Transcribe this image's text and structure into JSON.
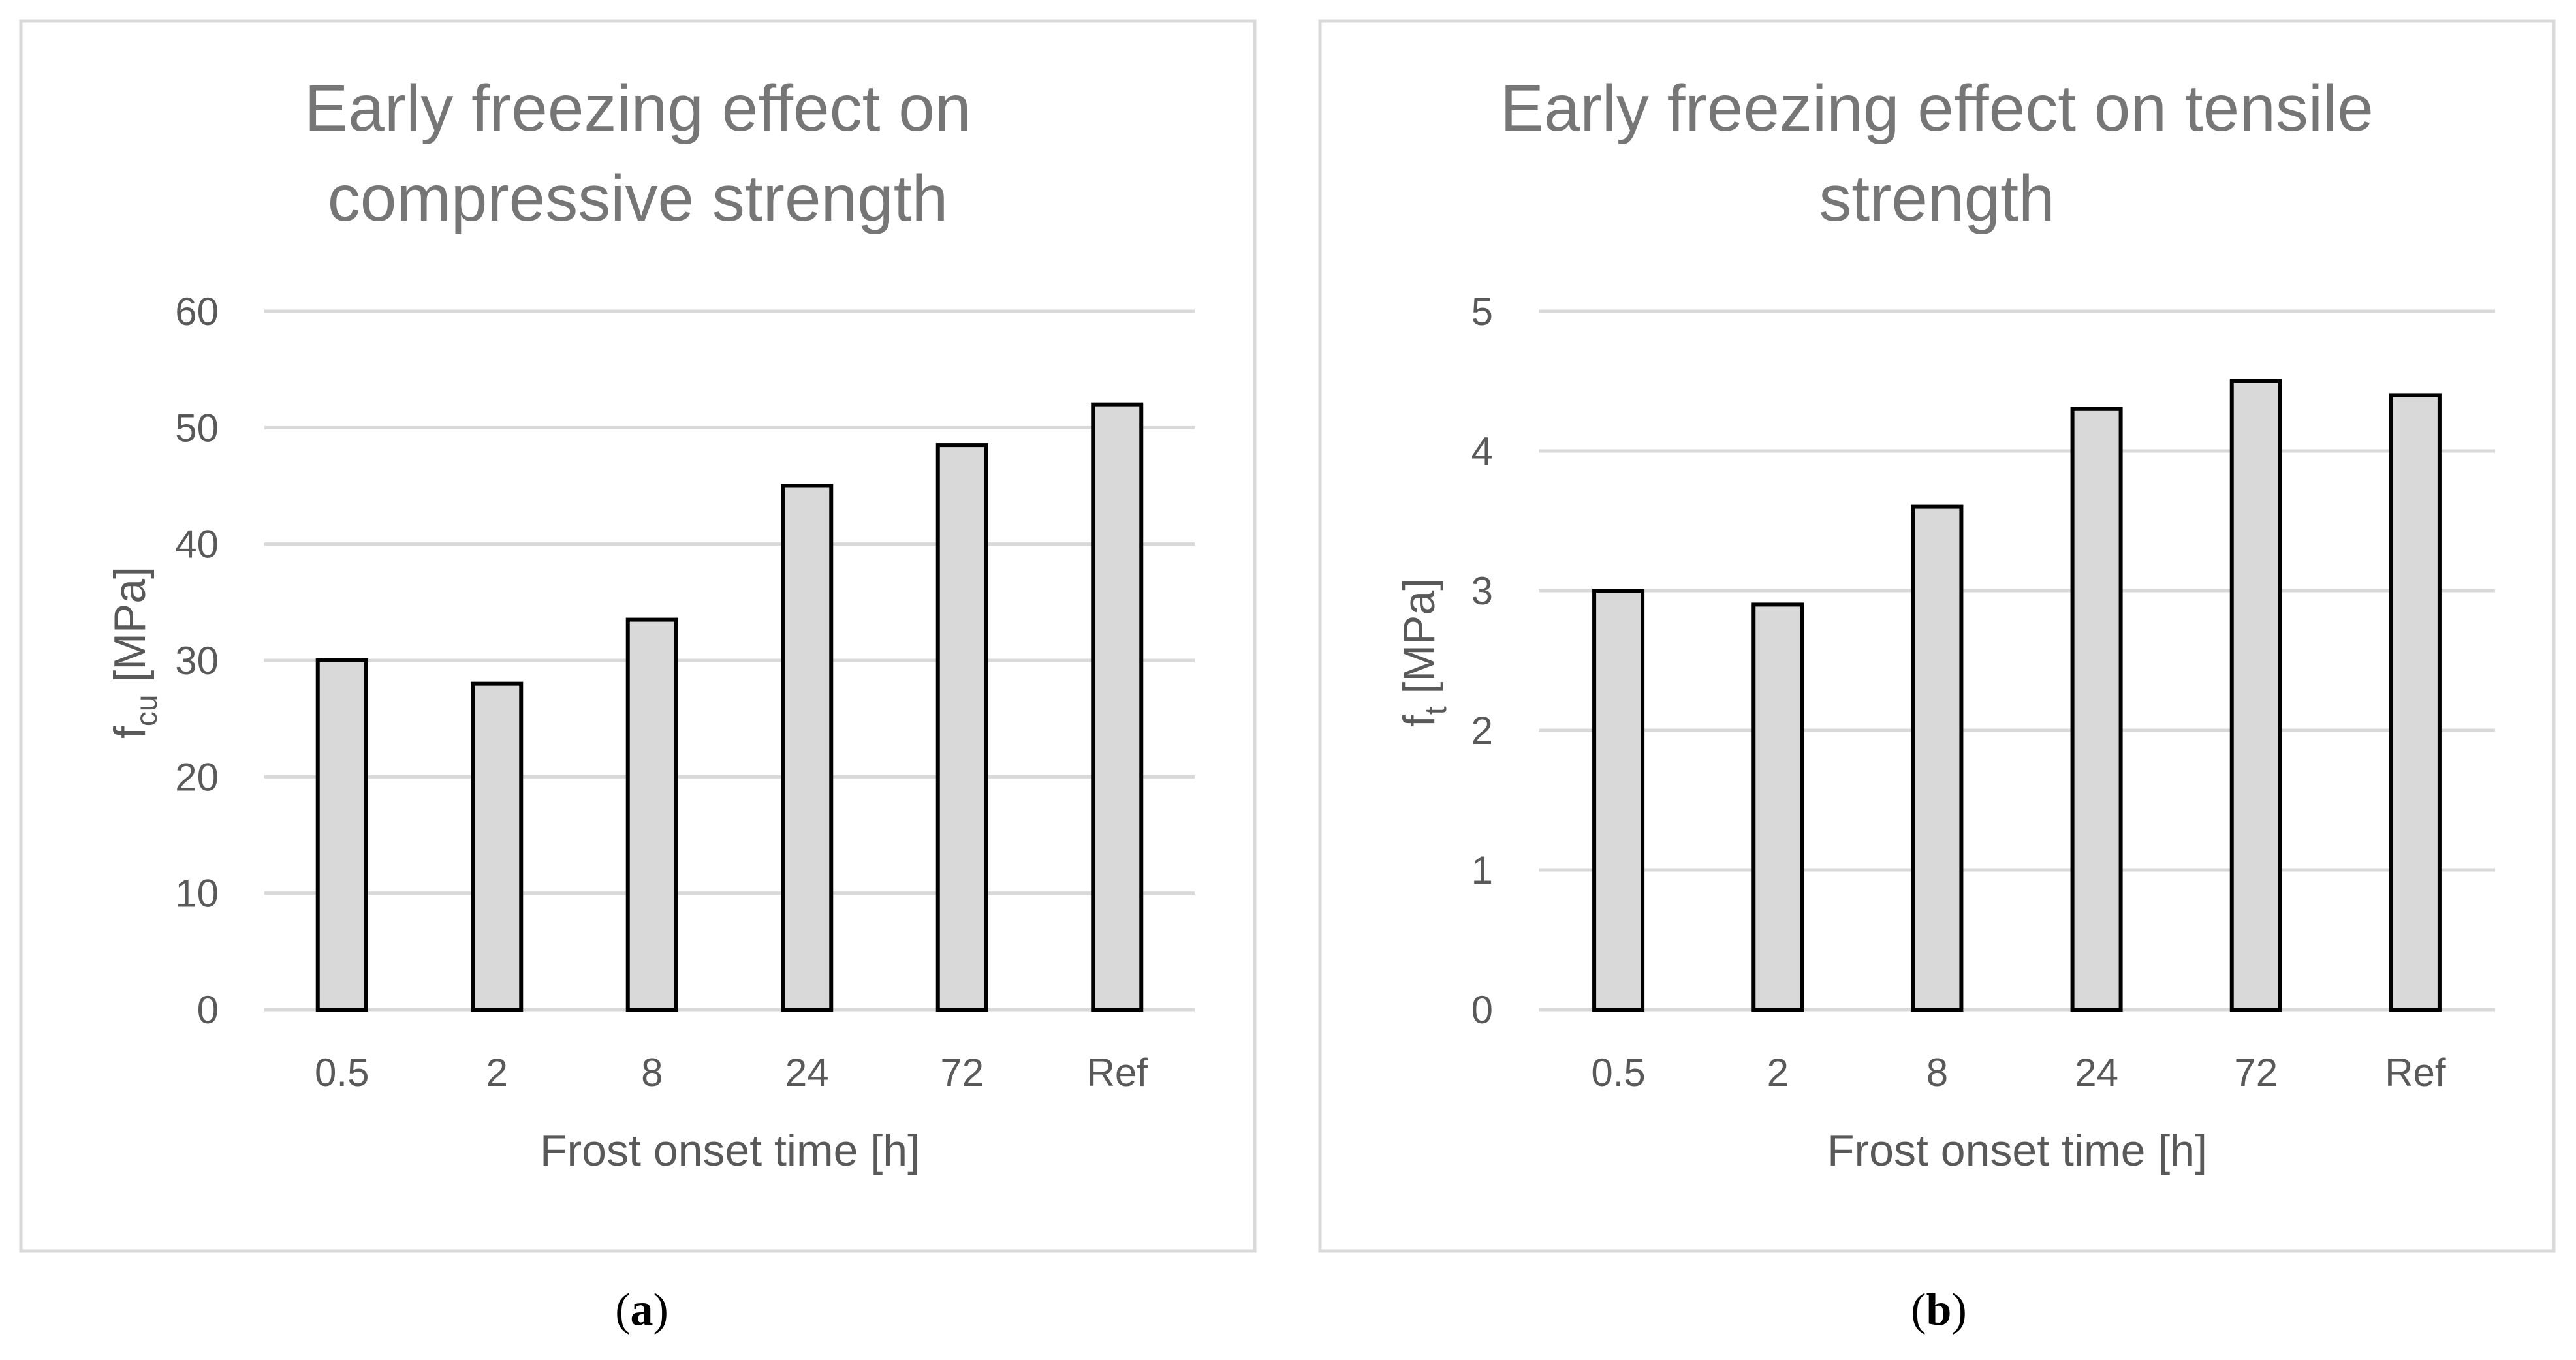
{
  "chart_data": [
    {
      "type": "bar",
      "title": "Early freezing effect on compressive strength",
      "title_lines": [
        "Early freezing effect on",
        "compressive strength"
      ],
      "xlabel": "Frost onset time [h]",
      "ylabel": "f",
      "ylabel_sub": "cu",
      "ylabel_unit": " [MPa]",
      "categories": [
        "0.5",
        "2",
        "8",
        "24",
        "72",
        "Ref"
      ],
      "values": [
        30,
        28,
        33.5,
        45,
        48.5,
        52
      ],
      "ylim": [
        0,
        60
      ],
      "yticks": [
        0,
        10,
        20,
        30,
        40,
        50,
        60
      ],
      "ytick_labels": [
        "0",
        "10",
        "20",
        "30",
        "40",
        "50",
        "60"
      ],
      "grid": true,
      "legend": "none",
      "caption_letter": "a",
      "caption_open": "(",
      "caption_close": ")"
    },
    {
      "type": "bar",
      "title": "Early freezing effect on tensile strength",
      "title_lines": [
        "Early freezing effect on tensile",
        "strength"
      ],
      "xlabel": "Frost onset time [h]",
      "ylabel": "f",
      "ylabel_sub": "t",
      "ylabel_unit": " [MPa]",
      "categories": [
        "0.5",
        "2",
        "8",
        "24",
        "72",
        "Ref"
      ],
      "values": [
        3.0,
        2.9,
        3.6,
        4.3,
        4.5,
        4.4
      ],
      "ylim": [
        0,
        5
      ],
      "yticks": [
        0,
        1,
        2,
        3,
        4,
        5
      ],
      "ytick_labels": [
        "0",
        "1",
        "2",
        "3",
        "4",
        "5"
      ],
      "grid": true,
      "legend": "none",
      "caption_letter": "b",
      "caption_open": "(",
      "caption_close": ")"
    }
  ]
}
